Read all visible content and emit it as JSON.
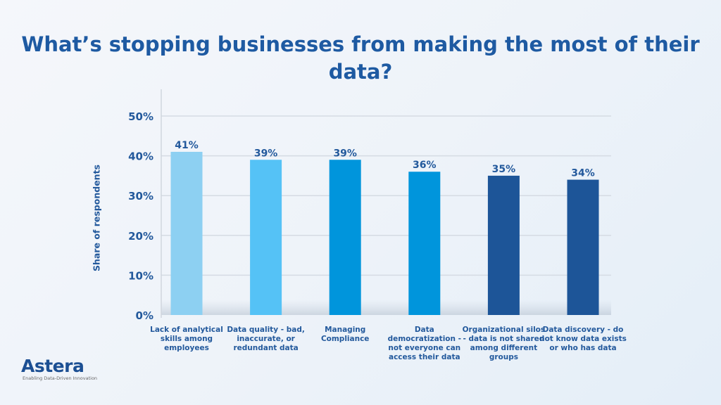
{
  "chart_data": {
    "type": "bar",
    "title": "What’s stopping businesses from making the most of their data?",
    "xlabel": "",
    "ylabel": "Share of respondents",
    "ylim": [
      0,
      50
    ],
    "yticks": [
      "0%",
      "10%",
      "20%",
      "30%",
      "40%",
      "50%"
    ],
    "ytick_values": [
      0,
      10,
      20,
      30,
      40,
      50
    ],
    "grid": true,
    "categories": [
      "Lack of analytical skills among employees",
      "Data quality - bad, inaccurate, or redundant data",
      "Managing Compliance",
      "Data democratization - not everyone can access their data",
      "Organizational silos - data is not shared among different groups",
      "Data discovery - do not know data exists or who has data"
    ],
    "values": [
      41,
      39,
      39,
      36,
      35,
      34
    ],
    "data_labels": [
      "41%",
      "39%",
      "39%",
      "36%",
      "35%",
      "34%"
    ],
    "colors": [
      "#8dd0f2",
      "#55c2f6",
      "#0095dc",
      "#0095dc",
      "#1d5598",
      "#1d5598"
    ]
  },
  "logo": {
    "name": "Astera",
    "tagline": "Enabling Data-Driven Innovation"
  }
}
